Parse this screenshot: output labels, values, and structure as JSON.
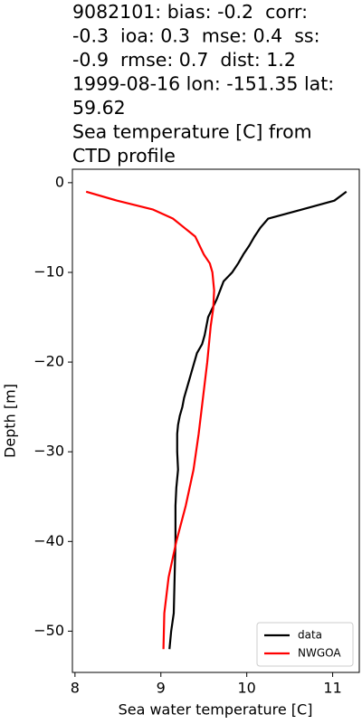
{
  "chart_data": {
    "type": "line",
    "title": [
      "9082101: bias: -0.2  corr:",
      "-0.3  ioa: 0.3  mse: 0.4  ss:",
      "-0.9  rmse: 0.7  dist: 1.2",
      "1999-08-16 lon: -151.35 lat:",
      "59.62",
      "Sea temperature [C] from",
      "CTD profile"
    ],
    "xlabel": "Sea water temperature [C]",
    "ylabel": "Depth [m]",
    "xlim": [
      7.97,
      11.31
    ],
    "ylim": [
      -54.6,
      1.5
    ],
    "xticks": [
      8,
      9,
      10,
      11
    ],
    "yticks": [
      0,
      {
        "value": -10,
        "label": "−10"
      },
      {
        "value": -20,
        "label": "−20"
      },
      {
        "value": -30,
        "label": "−30"
      },
      {
        "value": -40,
        "label": "−40"
      },
      {
        "value": -50,
        "label": "−50"
      }
    ],
    "legend": "lower right",
    "series": [
      {
        "name": "data",
        "color": "#000000",
        "x": [
          11.16,
          11.02,
          10.64,
          10.25,
          10.16,
          10.09,
          10.03,
          9.96,
          9.9,
          9.83,
          9.73,
          9.69,
          9.65,
          9.6,
          9.55,
          9.53,
          9.51,
          9.48,
          9.42,
          9.39,
          9.36,
          9.33,
          9.3,
          9.27,
          9.25,
          9.22,
          9.2,
          9.19,
          9.19,
          9.2,
          9.18,
          9.17,
          9.17,
          9.16,
          9.15,
          9.12,
          9.1
        ],
        "values": [
          -1,
          -2,
          -3,
          -4,
          -5,
          -6,
          -7,
          -8,
          -9,
          -10,
          -11,
          -12,
          -13,
          -14,
          -15,
          -16,
          -17,
          -18,
          -19,
          -20,
          -21,
          -22,
          -23,
          -24,
          -25,
          -26,
          -27,
          -28,
          -30,
          -32,
          -34,
          -36,
          -40,
          -44,
          -48,
          -50,
          -52
        ]
      },
      {
        "name": "NWGOA",
        "color": "#ff0000",
        "x": [
          8.13,
          8.49,
          8.91,
          9.14,
          9.27,
          9.4,
          9.5,
          9.57,
          9.6,
          9.62,
          9.61,
          9.58,
          9.54,
          9.49,
          9.44,
          9.38,
          9.29,
          9.18,
          9.09,
          9.04,
          9.03
        ],
        "values": [
          -1,
          -2,
          -3,
          -4,
          -5,
          -6,
          -8,
          -9,
          -10,
          -12,
          -14,
          -16,
          -20,
          -24,
          -28,
          -32,
          -36,
          -40,
          -44,
          -48,
          -52
        ]
      }
    ]
  }
}
